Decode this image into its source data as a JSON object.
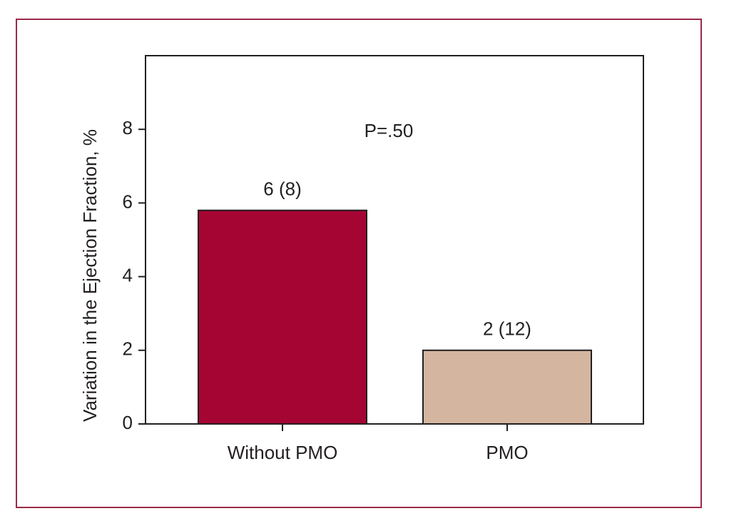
{
  "chart_data": {
    "type": "bar",
    "y_label": "Variation in the Ejection Fraction, %",
    "annotation": "P=.50",
    "categories": [
      "Without PMO",
      "PMO"
    ],
    "values": [
      5.8,
      2
    ],
    "value_labels": [
      "6 (8)",
      "2 (12)"
    ],
    "colors": [
      "#a50533",
      "#d4b5a0"
    ],
    "ylim": [
      0,
      10
    ],
    "yticks": [
      0,
      2,
      4,
      6,
      8
    ],
    "grid": false
  }
}
